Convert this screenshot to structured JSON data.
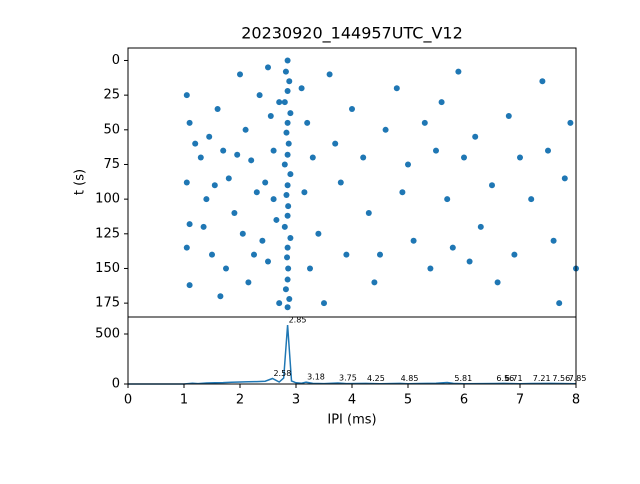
{
  "chart_data": [
    {
      "type": "scatter",
      "title": "20230920_144957UTC_V12",
      "ylabel": "t (s)",
      "color": "#1f77b4",
      "xlim": [
        0,
        8
      ],
      "ylim": [
        185,
        -9
      ],
      "yticks": [
        0,
        25,
        50,
        75,
        100,
        125,
        150,
        175
      ],
      "x": [
        2.85,
        2.82,
        2.88,
        2.85,
        2.8,
        2.9,
        2.85,
        2.83,
        2.87,
        2.85,
        2.8,
        2.9,
        2.85,
        2.83,
        2.86,
        2.85,
        2.8,
        2.9,
        2.85,
        2.84,
        2.86,
        2.85,
        2.82,
        2.88,
        2.85,
        1.05,
        1.1,
        1.2,
        1.05,
        1.1,
        1.05,
        1.1,
        1.3,
        1.4,
        1.5,
        1.35,
        1.6,
        1.7,
        1.8,
        1.9,
        1.75,
        1.65,
        2.0,
        2.1,
        2.2,
        2.3,
        2.4,
        2.15,
        2.5,
        2.55,
        2.6,
        2.45,
        2.65,
        2.5,
        2.7,
        2.35,
        2.05,
        1.95,
        2.25,
        1.45,
        1.55,
        2.6,
        2.7,
        3.1,
        3.2,
        3.3,
        3.15,
        3.4,
        3.25,
        3.5,
        3.6,
        3.7,
        3.8,
        3.9,
        4.0,
        4.2,
        4.3,
        4.4,
        4.6,
        4.8,
        5.0,
        4.9,
        5.1,
        5.3,
        5.4,
        5.5,
        5.6,
        5.7,
        5.8,
        5.9,
        6.0,
        6.2,
        6.3,
        6.5,
        6.6,
        6.8,
        7.0,
        6.9,
        7.2,
        7.4,
        7.5,
        7.6,
        7.8,
        7.9,
        8.0,
        7.7,
        6.1,
        4.5
      ],
      "y": [
        0,
        8,
        15,
        22,
        30,
        38,
        45,
        52,
        60,
        68,
        75,
        82,
        90,
        97,
        105,
        112,
        120,
        128,
        135,
        142,
        150,
        158,
        165,
        172,
        178,
        25,
        45,
        60,
        88,
        118,
        135,
        162,
        70,
        100,
        140,
        120,
        35,
        65,
        85,
        110,
        150,
        170,
        10,
        50,
        72,
        95,
        130,
        160,
        5,
        40,
        65,
        88,
        115,
        145,
        175,
        25,
        125,
        68,
        140,
        55,
        90,
        100,
        30,
        20,
        45,
        70,
        95,
        125,
        150,
        175,
        10,
        60,
        88,
        140,
        35,
        70,
        110,
        160,
        50,
        20,
        75,
        95,
        130,
        45,
        150,
        65,
        30,
        100,
        135,
        8,
        70,
        55,
        120,
        90,
        160,
        40,
        70,
        140,
        100,
        15,
        65,
        130,
        85,
        45,
        150,
        175,
        145,
        140
      ]
    },
    {
      "type": "line",
      "xlabel": "IPI (ms)",
      "color": "#1f77b4",
      "xlim": [
        0,
        8
      ],
      "ylim": [
        0,
        670
      ],
      "xticks": [
        0,
        1,
        2,
        3,
        4,
        5,
        6,
        7,
        8
      ],
      "yticks": [
        0,
        500
      ],
      "x": [
        0,
        1.0,
        1.15,
        1.25,
        1.4,
        1.55,
        1.7,
        1.85,
        2.0,
        2.15,
        2.3,
        2.45,
        2.58,
        2.7,
        2.78,
        2.85,
        2.92,
        3.0,
        3.1,
        3.18,
        3.3,
        3.5,
        3.75,
        3.9,
        4.25,
        4.5,
        4.85,
        5.0,
        5.2,
        5.5,
        5.7,
        5.81,
        6.0,
        6.56,
        6.71,
        7.0,
        7.21,
        7.56,
        7.85,
        8.0
      ],
      "values": [
        0,
        0,
        8,
        4,
        10,
        12,
        14,
        18,
        20,
        22,
        24,
        28,
        55,
        20,
        60,
        590,
        30,
        12,
        8,
        18,
        6,
        4,
        10,
        4,
        6,
        2,
        6,
        3,
        5,
        8,
        15,
        6,
        2,
        5,
        6,
        2,
        5,
        6,
        4,
        2
      ],
      "annotations": [
        {
          "x": 2.85,
          "y": 590
        },
        {
          "x": 2.58,
          "y": 55
        },
        {
          "x": 3.18,
          "y": 18
        },
        {
          "x": 3.75,
          "y": 10
        },
        {
          "x": 4.25,
          "y": 6
        },
        {
          "x": 4.85,
          "y": 6
        },
        {
          "x": 5.81,
          "y": 6
        },
        {
          "x": 6.56,
          "y": 5
        },
        {
          "x": 6.71,
          "y": 6
        },
        {
          "x": 7.21,
          "y": 5
        },
        {
          "x": 7.56,
          "y": 6
        },
        {
          "x": 7.85,
          "y": 4
        }
      ]
    }
  ]
}
